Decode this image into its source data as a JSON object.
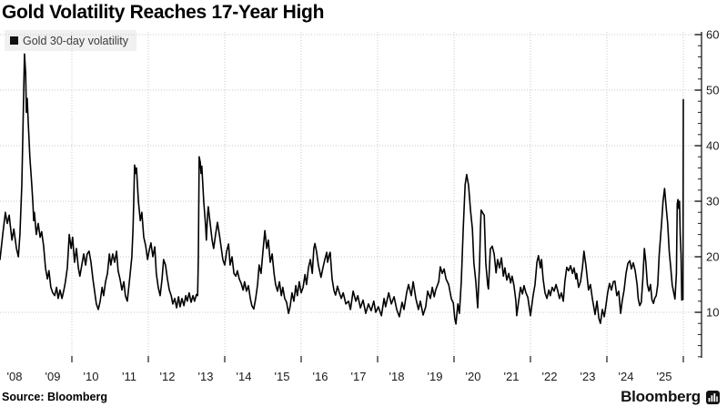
{
  "title": "Gold Volatility Reaches 17-Year High",
  "legend": {
    "label": "Gold 30-day volatility",
    "swatch_color": "#111111",
    "background": "#f1f1f1"
  },
  "source": "Source: Bloomberg",
  "brand": {
    "wordmark": "Bloomberg"
  },
  "colors": {
    "line": "#000000",
    "grid": "#c8c8c8",
    "axis": "#1a1a1a",
    "tick_label": "#1a1a1a",
    "legend_text": "#3b3b3b",
    "background": "#ffffff"
  },
  "chart_data": {
    "type": "line",
    "title": "Gold Volatility Reaches 17-Year High",
    "series_name": "Gold 30-day volatility",
    "xlabel": "",
    "ylabel": "",
    "ylim": [
      2,
      61
    ],
    "y_ticks": [
      10,
      20,
      30,
      40,
      50,
      60
    ],
    "y_minor_tick_step": 2,
    "x_range_years": [
      2008.0,
      2026.1
    ],
    "x_gridline_years": [
      2010,
      2012,
      2014,
      2016,
      2018,
      2020,
      2022,
      2024,
      2026
    ],
    "x_label_years": [
      2008,
      2009,
      2010,
      2011,
      2012,
      2013,
      2014,
      2015,
      2016,
      2017,
      2018,
      2019,
      2020,
      2021,
      2022,
      2023,
      2024,
      2025
    ],
    "x_label_format": "'YY",
    "grid": "dotted",
    "legend_position": "top-left",
    "points": [
      [
        2008.12,
        19.5
      ],
      [
        2008.19,
        24
      ],
      [
        2008.26,
        28
      ],
      [
        2008.31,
        26
      ],
      [
        2008.36,
        27.5
      ],
      [
        2008.43,
        23
      ],
      [
        2008.48,
        25
      ],
      [
        2008.55,
        21.5
      ],
      [
        2008.6,
        20
      ],
      [
        2008.64,
        24
      ],
      [
        2008.69,
        33
      ],
      [
        2008.74,
        50
      ],
      [
        2008.76,
        56.5
      ],
      [
        2008.79,
        53
      ],
      [
        2008.81,
        46
      ],
      [
        2008.83,
        48.5
      ],
      [
        2008.86,
        44
      ],
      [
        2008.9,
        38
      ],
      [
        2008.95,
        33
      ],
      [
        2008.98,
        29.5
      ],
      [
        2009.0,
        26.5
      ],
      [
        2009.02,
        28
      ],
      [
        2009.07,
        24
      ],
      [
        2009.12,
        26
      ],
      [
        2009.17,
        23.5
      ],
      [
        2009.21,
        24.5
      ],
      [
        2009.26,
        22
      ],
      [
        2009.31,
        18
      ],
      [
        2009.36,
        16
      ],
      [
        2009.4,
        17.5
      ],
      [
        2009.45,
        14.5
      ],
      [
        2009.5,
        13.5
      ],
      [
        2009.55,
        13
      ],
      [
        2009.6,
        14.5
      ],
      [
        2009.64,
        12.5
      ],
      [
        2009.69,
        14
      ],
      [
        2009.74,
        12.5
      ],
      [
        2009.79,
        14
      ],
      [
        2009.83,
        15.5
      ],
      [
        2009.88,
        18
      ],
      [
        2009.93,
        24
      ],
      [
        2009.98,
        21.5
      ],
      [
        2010.02,
        23.5
      ],
      [
        2010.07,
        19
      ],
      [
        2010.12,
        21.5
      ],
      [
        2010.17,
        18
      ],
      [
        2010.21,
        16.5
      ],
      [
        2010.26,
        18.5
      ],
      [
        2010.31,
        20.5
      ],
      [
        2010.36,
        18.5
      ],
      [
        2010.4,
        20.5
      ],
      [
        2010.45,
        21
      ],
      [
        2010.5,
        19
      ],
      [
        2010.55,
        16
      ],
      [
        2010.6,
        13.5
      ],
      [
        2010.64,
        11.5
      ],
      [
        2010.69,
        10.5
      ],
      [
        2010.74,
        12
      ],
      [
        2010.79,
        14.5
      ],
      [
        2010.83,
        13
      ],
      [
        2010.88,
        15.5
      ],
      [
        2010.93,
        17
      ],
      [
        2010.98,
        20.5
      ],
      [
        2011.02,
        18.5
      ],
      [
        2011.07,
        20.5
      ],
      [
        2011.12,
        19
      ],
      [
        2011.17,
        21
      ],
      [
        2011.21,
        17.5
      ],
      [
        2011.26,
        16
      ],
      [
        2011.31,
        14
      ],
      [
        2011.36,
        15.5
      ],
      [
        2011.4,
        13
      ],
      [
        2011.45,
        12
      ],
      [
        2011.48,
        14
      ],
      [
        2011.52,
        16.5
      ],
      [
        2011.57,
        20
      ],
      [
        2011.6,
        25
      ],
      [
        2011.62,
        30
      ],
      [
        2011.64,
        36.5
      ],
      [
        2011.67,
        35
      ],
      [
        2011.69,
        36
      ],
      [
        2011.74,
        30
      ],
      [
        2011.79,
        26.5
      ],
      [
        2011.83,
        28
      ],
      [
        2011.88,
        23.5
      ],
      [
        2011.93,
        22
      ],
      [
        2011.98,
        19.5
      ],
      [
        2012.02,
        21
      ],
      [
        2012.07,
        22.5
      ],
      [
        2012.12,
        20
      ],
      [
        2012.17,
        21.8
      ],
      [
        2012.21,
        17
      ],
      [
        2012.26,
        14.5
      ],
      [
        2012.31,
        13
      ],
      [
        2012.36,
        16
      ],
      [
        2012.4,
        19.5
      ],
      [
        2012.45,
        18.5
      ],
      [
        2012.5,
        16
      ],
      [
        2012.55,
        14
      ],
      [
        2012.6,
        13
      ],
      [
        2012.64,
        11.5
      ],
      [
        2012.69,
        12.5
      ],
      [
        2012.74,
        10.8
      ],
      [
        2012.79,
        12.8
      ],
      [
        2012.83,
        11
      ],
      [
        2012.88,
        12.5
      ],
      [
        2012.93,
        11.2
      ],
      [
        2012.98,
        13
      ],
      [
        2013.02,
        12
      ],
      [
        2013.07,
        13.5
      ],
      [
        2013.12,
        11.8
      ],
      [
        2013.17,
        13
      ],
      [
        2013.21,
        12
      ],
      [
        2013.26,
        13.2
      ],
      [
        2013.29,
        13
      ],
      [
        2013.31,
        20
      ],
      [
        2013.33,
        38
      ],
      [
        2013.36,
        37
      ],
      [
        2013.38,
        35
      ],
      [
        2013.4,
        36.3
      ],
      [
        2013.45,
        30
      ],
      [
        2013.5,
        25.5
      ],
      [
        2013.52,
        23
      ],
      [
        2013.55,
        27.5
      ],
      [
        2013.57,
        29
      ],
      [
        2013.62,
        26
      ],
      [
        2013.67,
        23
      ],
      [
        2013.71,
        21.5
      ],
      [
        2013.76,
        24
      ],
      [
        2013.81,
        26.2
      ],
      [
        2013.86,
        24
      ],
      [
        2013.9,
        22
      ],
      [
        2013.95,
        19.5
      ],
      [
        2014.0,
        18.5
      ],
      [
        2014.05,
        21
      ],
      [
        2014.1,
        22.3
      ],
      [
        2014.14,
        18.5
      ],
      [
        2014.19,
        20
      ],
      [
        2014.24,
        17
      ],
      [
        2014.29,
        16.5
      ],
      [
        2014.33,
        17.5
      ],
      [
        2014.38,
        16
      ],
      [
        2014.43,
        15.2
      ],
      [
        2014.48,
        14
      ],
      [
        2014.52,
        15.5
      ],
      [
        2014.57,
        13.8
      ],
      [
        2014.62,
        14.8
      ],
      [
        2014.67,
        12.5
      ],
      [
        2014.71,
        11.2
      ],
      [
        2014.76,
        10.6
      ],
      [
        2014.81,
        12.5
      ],
      [
        2014.86,
        15
      ],
      [
        2014.9,
        18.5
      ],
      [
        2014.95,
        17
      ],
      [
        2015.0,
        21
      ],
      [
        2015.05,
        24.7
      ],
      [
        2015.1,
        21.5
      ],
      [
        2015.14,
        23
      ],
      [
        2015.19,
        19
      ],
      [
        2015.24,
        20.5
      ],
      [
        2015.29,
        17
      ],
      [
        2015.33,
        15
      ],
      [
        2015.38,
        13.8
      ],
      [
        2015.43,
        15.5
      ],
      [
        2015.48,
        13
      ],
      [
        2015.52,
        14.5
      ],
      [
        2015.57,
        12.5
      ],
      [
        2015.62,
        11.8
      ],
      [
        2015.67,
        9.8
      ],
      [
        2015.71,
        11
      ],
      [
        2015.76,
        13.5
      ],
      [
        2015.81,
        12
      ],
      [
        2015.86,
        14.8
      ],
      [
        2015.9,
        13
      ],
      [
        2015.95,
        15.5
      ],
      [
        2016.0,
        13.5
      ],
      [
        2016.05,
        14.5
      ],
      [
        2016.1,
        16.8
      ],
      [
        2016.14,
        15
      ],
      [
        2016.19,
        18
      ],
      [
        2016.24,
        19.5
      ],
      [
        2016.29,
        17
      ],
      [
        2016.33,
        21.5
      ],
      [
        2016.36,
        22.4
      ],
      [
        2016.4,
        21
      ],
      [
        2016.45,
        18.5
      ],
      [
        2016.52,
        16.3
      ],
      [
        2016.57,
        18
      ],
      [
        2016.62,
        19.5
      ],
      [
        2016.67,
        20.8
      ],
      [
        2016.69,
        19
      ],
      [
        2016.74,
        20.5
      ],
      [
        2016.76,
        20.8
      ],
      [
        2016.81,
        16
      ],
      [
        2016.86,
        13.9
      ],
      [
        2016.9,
        13.1
      ],
      [
        2016.95,
        14.7
      ],
      [
        2017.0,
        13.5
      ],
      [
        2017.05,
        12.5
      ],
      [
        2017.1,
        13.5
      ],
      [
        2017.17,
        11.5
      ],
      [
        2017.24,
        12
      ],
      [
        2017.29,
        10.5
      ],
      [
        2017.36,
        13.8
      ],
      [
        2017.43,
        12
      ],
      [
        2017.48,
        13
      ],
      [
        2017.55,
        10.8
      ],
      [
        2017.62,
        12.2
      ],
      [
        2017.69,
        9.8
      ],
      [
        2017.76,
        11.5
      ],
      [
        2017.83,
        10.3
      ],
      [
        2017.9,
        12
      ],
      [
        2017.95,
        10
      ],
      [
        2018.02,
        11
      ],
      [
        2018.1,
        9.4
      ],
      [
        2018.17,
        12.5
      ],
      [
        2018.21,
        11
      ],
      [
        2018.29,
        13.5
      ],
      [
        2018.36,
        11.5
      ],
      [
        2018.43,
        12.8
      ],
      [
        2018.5,
        10.5
      ],
      [
        2018.57,
        9.2
      ],
      [
        2018.64,
        11.8
      ],
      [
        2018.69,
        10.5
      ],
      [
        2018.76,
        13.5
      ],
      [
        2018.81,
        15
      ],
      [
        2018.88,
        13
      ],
      [
        2018.93,
        15.5
      ],
      [
        2019.0,
        12.5
      ],
      [
        2019.07,
        10.5
      ],
      [
        2019.12,
        12
      ],
      [
        2019.19,
        9.5
      ],
      [
        2019.26,
        11
      ],
      [
        2019.31,
        13.8
      ],
      [
        2019.38,
        12.5
      ],
      [
        2019.43,
        14.5
      ],
      [
        2019.48,
        12.8
      ],
      [
        2019.52,
        14
      ],
      [
        2019.6,
        15.5
      ],
      [
        2019.64,
        18.2
      ],
      [
        2019.69,
        17
      ],
      [
        2019.74,
        17.8
      ],
      [
        2019.79,
        16
      ],
      [
        2019.86,
        15
      ],
      [
        2019.93,
        12.4
      ],
      [
        2019.98,
        11.7
      ],
      [
        2020.02,
        8.9
      ],
      [
        2020.05,
        7.9
      ],
      [
        2020.1,
        11.5
      ],
      [
        2020.14,
        9.8
      ],
      [
        2020.19,
        15.6
      ],
      [
        2020.24,
        25
      ],
      [
        2020.29,
        33
      ],
      [
        2020.33,
        34.8
      ],
      [
        2020.38,
        32.8
      ],
      [
        2020.43,
        28.4
      ],
      [
        2020.48,
        25
      ],
      [
        2020.52,
        18.9
      ],
      [
        2020.57,
        15.6
      ],
      [
        2020.62,
        10.8
      ],
      [
        2020.67,
        18.9
      ],
      [
        2020.69,
        25
      ],
      [
        2020.71,
        28.4
      ],
      [
        2020.76,
        27.8
      ],
      [
        2020.79,
        27.5
      ],
      [
        2020.83,
        18.9
      ],
      [
        2020.88,
        14.9
      ],
      [
        2020.9,
        14.2
      ],
      [
        2020.95,
        21.4
      ],
      [
        2021.0,
        21.9
      ],
      [
        2021.05,
        20.5
      ],
      [
        2021.1,
        17.1
      ],
      [
        2021.14,
        19.5
      ],
      [
        2021.19,
        18
      ],
      [
        2021.24,
        19.8
      ],
      [
        2021.29,
        16.5
      ],
      [
        2021.33,
        18
      ],
      [
        2021.38,
        15.8
      ],
      [
        2021.43,
        17
      ],
      [
        2021.48,
        15.3
      ],
      [
        2021.52,
        16.5
      ],
      [
        2021.57,
        14.8
      ],
      [
        2021.62,
        12
      ],
      [
        2021.64,
        9.4
      ],
      [
        2021.69,
        12
      ],
      [
        2021.74,
        14.5
      ],
      [
        2021.79,
        13.3
      ],
      [
        2021.83,
        14.8
      ],
      [
        2021.88,
        13.5
      ],
      [
        2021.93,
        12.7
      ],
      [
        2022.0,
        9.4
      ],
      [
        2022.07,
        13
      ],
      [
        2022.12,
        15
      ],
      [
        2022.17,
        19
      ],
      [
        2022.21,
        20.2
      ],
      [
        2022.26,
        18
      ],
      [
        2022.29,
        19.5
      ],
      [
        2022.33,
        16
      ],
      [
        2022.38,
        13.5
      ],
      [
        2022.43,
        12.5
      ],
      [
        2022.48,
        14
      ],
      [
        2022.52,
        13
      ],
      [
        2022.57,
        14.5
      ],
      [
        2022.62,
        13.8
      ],
      [
        2022.67,
        15
      ],
      [
        2022.71,
        14
      ],
      [
        2022.76,
        12.5
      ],
      [
        2022.81,
        13.5
      ],
      [
        2022.86,
        12
      ],
      [
        2022.9,
        15.5
      ],
      [
        2022.95,
        18.1
      ],
      [
        2023.0,
        17.5
      ],
      [
        2023.05,
        18.4
      ],
      [
        2023.1,
        17
      ],
      [
        2023.14,
        18
      ],
      [
        2023.19,
        16
      ],
      [
        2023.21,
        17
      ],
      [
        2023.26,
        14.5
      ],
      [
        2023.31,
        15.5
      ],
      [
        2023.36,
        18
      ],
      [
        2023.4,
        21
      ],
      [
        2023.45,
        18.5
      ],
      [
        2023.48,
        16.5
      ],
      [
        2023.52,
        14
      ],
      [
        2023.57,
        15
      ],
      [
        2023.62,
        12.5
      ],
      [
        2023.69,
        9.6
      ],
      [
        2023.74,
        12
      ],
      [
        2023.79,
        8.9
      ],
      [
        2023.83,
        8
      ],
      [
        2023.88,
        10.5
      ],
      [
        2023.93,
        9.2
      ],
      [
        2023.98,
        11.5
      ],
      [
        2024.02,
        13.5
      ],
      [
        2024.07,
        15.2
      ],
      [
        2024.12,
        14
      ],
      [
        2024.17,
        15.5
      ],
      [
        2024.21,
        15.6
      ],
      [
        2024.26,
        13
      ],
      [
        2024.31,
        13.8
      ],
      [
        2024.36,
        9.8
      ],
      [
        2024.4,
        12
      ],
      [
        2024.45,
        14
      ],
      [
        2024.5,
        17
      ],
      [
        2024.55,
        18.8
      ],
      [
        2024.6,
        19.3
      ],
      [
        2024.64,
        17.8
      ],
      [
        2024.69,
        18.9
      ],
      [
        2024.74,
        17.5
      ],
      [
        2024.79,
        15
      ],
      [
        2024.82,
        12.5
      ],
      [
        2024.86,
        11.2
      ],
      [
        2024.9,
        11.8
      ],
      [
        2024.94,
        16
      ],
      [
        2024.98,
        21.5
      ],
      [
        2025.02,
        19
      ],
      [
        2025.06,
        15
      ],
      [
        2025.1,
        13.8
      ],
      [
        2025.14,
        15
      ],
      [
        2025.18,
        12.2
      ],
      [
        2025.22,
        11.6
      ],
      [
        2025.25,
        12.5
      ],
      [
        2025.29,
        13
      ],
      [
        2025.33,
        15
      ],
      [
        2025.37,
        20.4
      ],
      [
        2025.43,
        26
      ],
      [
        2025.47,
        30
      ],
      [
        2025.51,
        32.3
      ],
      [
        2025.55,
        29
      ],
      [
        2025.59,
        26
      ],
      [
        2025.63,
        21
      ],
      [
        2025.67,
        18.2
      ],
      [
        2025.71,
        14.9
      ],
      [
        2025.75,
        13.5
      ],
      [
        2025.78,
        12.4
      ],
      [
        2025.82,
        17
      ],
      [
        2025.84,
        29.5
      ],
      [
        2025.86,
        30.3
      ],
      [
        2025.88,
        28.7
      ],
      [
        2025.9,
        30
      ],
      [
        2025.92,
        24
      ],
      [
        2025.94,
        20.4
      ],
      [
        2025.96,
        12.2
      ],
      [
        2025.98,
        13.8
      ],
      [
        2025.99,
        12.3
      ],
      [
        2026.0,
        48.3
      ]
    ]
  }
}
